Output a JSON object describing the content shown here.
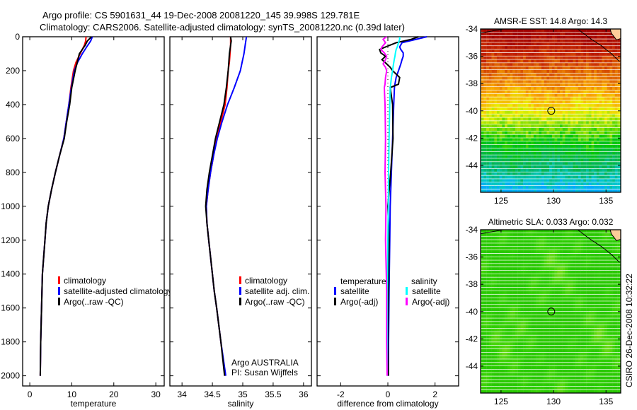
{
  "title": {
    "line1": "Argo profile: CS 5901631_44 19-Dec-2008 20081220_145 39.998S 129.781E",
    "line2": "Climatology: CARS2006. Satellite-adjusted climatology: synTS_20081220.nc (0.39d later)"
  },
  "footer": "CSIRO 26-Dec-2008 10:32:22",
  "annotation": {
    "line1": "Argo AUSTRALIA",
    "line2": "PI: Susan Wijffels"
  },
  "chart_data": [
    {
      "type": "line",
      "name": "temperature-profile",
      "xlabel": "temperature",
      "ylabel": "",
      "xlim": [
        -1.7,
        32
      ],
      "ylim": [
        0,
        2060
      ],
      "yreversed": true,
      "xticks": [
        0,
        10,
        20,
        30
      ],
      "yticks": [
        0,
        200,
        400,
        600,
        800,
        1000,
        1200,
        1400,
        1600,
        1800,
        2000
      ],
      "show_yticklabels": true,
      "legend": {
        "placement": "middle-left",
        "headers": [],
        "entries": [
          "climatology",
          "satellite-adjusted climatology",
          "Argo(..raw -QC)"
        ]
      },
      "depth": [
        0,
        25,
        50,
        100,
        150,
        200,
        300,
        400,
        500,
        600,
        700,
        800,
        900,
        1000,
        1100,
        1200,
        1300,
        1400,
        1500,
        1600,
        1800,
        2000
      ],
      "series": [
        {
          "name": "climatology",
          "color": "#ff0000",
          "values": [
            13.4,
            13.3,
            13.0,
            12.0,
            11.0,
            10.4,
            9.8,
            9.3,
            8.7,
            8.1,
            7.1,
            6.1,
            5.2,
            4.4,
            3.9,
            3.6,
            3.3,
            3.0,
            2.9,
            2.8,
            2.6,
            2.5
          ]
        },
        {
          "name": "satellite-adjusted climatology",
          "color": "#0000ff",
          "values": [
            14.9,
            14.5,
            13.8,
            12.5,
            11.4,
            10.6,
            9.9,
            9.3,
            8.7,
            8.1,
            7.1,
            6.1,
            5.2,
            4.4,
            3.9,
            3.6,
            3.3,
            3.0,
            2.9,
            2.8,
            2.6,
            2.5
          ]
        },
        {
          "name": "Argo(..raw -QC)",
          "color": "#000000",
          "values": [
            14.7,
            13.7,
            13.2,
            11.8,
            11.3,
            10.8,
            10.0,
            9.5,
            8.8,
            8.2,
            7.1,
            6.1,
            5.2,
            4.4,
            3.9,
            3.6,
            3.3,
            3.0,
            2.9,
            2.8,
            2.6,
            2.5
          ]
        }
      ]
    },
    {
      "type": "line",
      "name": "salinity-profile",
      "xlabel": "salinity",
      "ylabel": "",
      "xlim": [
        33.8,
        36.13
      ],
      "ylim": [
        0,
        2060
      ],
      "yreversed": true,
      "xticks": [
        34,
        34.5,
        35,
        35.5,
        36
      ],
      "yticks": [
        0,
        200,
        400,
        600,
        800,
        1000,
        1200,
        1400,
        1600,
        1800,
        2000
      ],
      "show_yticklabels": false,
      "legend": {
        "placement": "middle-right",
        "headers": [],
        "entries": [
          "climatology",
          "satellite adj. clim.",
          "Argo(..raw -QC)"
        ]
      },
      "depth": [
        0,
        25,
        50,
        100,
        150,
        200,
        300,
        400,
        500,
        600,
        700,
        800,
        900,
        1000,
        1100,
        1200,
        1300,
        1400,
        1500,
        1600,
        1800,
        2000
      ],
      "series": [
        {
          "name": "climatology",
          "color": "#ff0000",
          "values": [
            34.8,
            34.8,
            34.8,
            34.79,
            34.78,
            34.76,
            34.74,
            34.71,
            34.64,
            34.57,
            34.52,
            34.47,
            34.43,
            34.4,
            34.41,
            34.44,
            34.47,
            34.5,
            34.53,
            34.57,
            34.64,
            34.71
          ]
        },
        {
          "name": "satellite adj. clim.",
          "color": "#0000ff",
          "values": [
            35.06,
            35.05,
            35.04,
            35.02,
            34.99,
            34.96,
            34.86,
            34.75,
            34.66,
            34.58,
            34.52,
            34.47,
            34.43,
            34.4,
            34.41,
            34.44,
            34.47,
            34.5,
            34.53,
            34.57,
            34.64,
            34.72
          ]
        },
        {
          "name": "Argo(..raw -QC)",
          "color": "#000000",
          "values": [
            34.8,
            34.81,
            34.8,
            34.78,
            34.77,
            34.76,
            34.73,
            34.69,
            34.62,
            34.55,
            34.5,
            34.45,
            34.41,
            34.39,
            34.41,
            34.44,
            34.47,
            34.5,
            34.53,
            34.57,
            34.64,
            34.7
          ]
        }
      ]
    },
    {
      "type": "line",
      "name": "difference-profile",
      "xlabel": "difference from climatology",
      "ylabel": "",
      "xlim": [
        -3,
        3
      ],
      "ylim": [
        0,
        2060
      ],
      "yreversed": true,
      "xticks": [
        -2,
        0,
        2
      ],
      "yticks": [
        0,
        200,
        400,
        600,
        800,
        1000,
        1200,
        1400,
        1600,
        1800,
        2000
      ],
      "show_yticklabels": false,
      "zero_line": true,
      "legend": {
        "placement": "lower-middle",
        "headers": [
          "temperature",
          "salinity"
        ],
        "entries": [
          "satellite",
          "Argo(-adj)",
          "satellite",
          "Argo(-adj)"
        ]
      },
      "depth": [
        0,
        15,
        35,
        60,
        75,
        95,
        115,
        135,
        160,
        180,
        200,
        240,
        280,
        300,
        400,
        600,
        800,
        1000,
        1200,
        1500,
        1800,
        2000
      ],
      "series": [
        {
          "name": "temperature satellite",
          "color": "#0000ff",
          "values": [
            1.65,
            1.2,
            0.6,
            0.5,
            0.55,
            0.65,
            0.65,
            0.6,
            0.55,
            0.5,
            0.45,
            0.35,
            0.3,
            0.28,
            0.25,
            0.2,
            0.15,
            0.1,
            0.08,
            0.05,
            0.03,
            0.02
          ]
        },
        {
          "name": "temperature Argo(-adj)",
          "color": "#000000",
          "values": [
            1.3,
            1.0,
            0.35,
            -0.1,
            -0.35,
            -0.3,
            -0.1,
            -0.25,
            -0.05,
            0.1,
            0.2,
            0.5,
            0.45,
            0.1,
            0.2,
            0.22,
            0.12,
            0.0,
            0.05,
            0.03,
            0.0,
            0.02
          ]
        },
        {
          "name": "salinity satellite",
          "color": "#00ffff",
          "values": [
            0.5,
            0.5,
            0.45,
            0.4,
            0.35,
            0.32,
            0.3,
            0.27,
            0.24,
            0.22,
            0.2,
            0.15,
            0.12,
            0.1,
            0.08,
            0.05,
            0.03,
            0.02,
            0.0,
            -0.02,
            -0.03,
            -0.03
          ]
        },
        {
          "name": "salinity Argo(-adj)",
          "color": "#ff00ff",
          "values": [
            -0.05,
            -0.2,
            -0.1,
            -0.25,
            -0.3,
            -0.15,
            -0.05,
            -0.1,
            -0.2,
            -0.1,
            -0.05,
            -0.1,
            -0.12,
            -0.15,
            -0.12,
            -0.1,
            -0.12,
            -0.08,
            -0.1,
            -0.05,
            -0.05,
            -0.03
          ]
        }
      ]
    },
    {
      "type": "heatmap",
      "name": "sst-map",
      "title": "AMSR-E SST: 14.8 Argo: 14.3",
      "xlim": [
        123.05,
        136.4
      ],
      "ylim": [
        -45.97,
        -34
      ],
      "xticks": [
        125,
        130,
        135
      ],
      "yticks": [
        -34,
        -36,
        -38,
        -40,
        -42,
        -44
      ],
      "argo_position": {
        "lon": 129.781,
        "lat": -39.998
      },
      "land_color": "#ffcc99"
    },
    {
      "type": "heatmap",
      "name": "sla-map",
      "title": "Altimetric SLA: 0.033 Argo: 0.032",
      "xlim": [
        123.05,
        136.4
      ],
      "ylim": [
        -45.97,
        -34
      ],
      "xticks": [
        125,
        130,
        135
      ],
      "yticks": [
        -34,
        -36,
        -38,
        -40,
        -42,
        -44
      ],
      "argo_position": {
        "lon": 129.781,
        "lat": -39.998
      },
      "land_color": "#ffcc99"
    }
  ]
}
